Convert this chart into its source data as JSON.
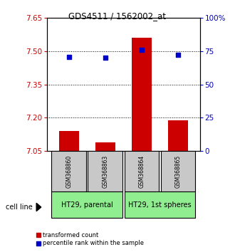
{
  "title": "GDS4511 / 1562002_at",
  "samples": [
    "GSM368860",
    "GSM368863",
    "GSM368864",
    "GSM368865"
  ],
  "transformed_counts": [
    7.14,
    7.09,
    7.56,
    7.19
  ],
  "percentile_ranks": [
    70.5,
    70.0,
    76.0,
    72.0
  ],
  "baseline": 7.05,
  "ylim_left": [
    7.05,
    7.65
  ],
  "ylim_right": [
    0,
    100
  ],
  "yticks_left": [
    7.05,
    7.2,
    7.35,
    7.5,
    7.65
  ],
  "yticks_right": [
    0,
    25,
    50,
    75,
    100
  ],
  "cell_lines": [
    "HT29, parental",
    "HT29, 1st spheres"
  ],
  "cell_line_groups": [
    [
      0,
      1
    ],
    [
      2,
      3
    ]
  ],
  "bar_color": "#cc0000",
  "dot_color": "#0000cc",
  "cell_line_bg": "#90ee90",
  "sample_box_bg": "#c8c8c8",
  "background_color": "#ffffff",
  "left_tick_color": "#cc0000",
  "right_tick_color": "#0000bb",
  "bar_width": 0.55,
  "hgrid_at": [
    7.2,
    7.35,
    7.5
  ]
}
